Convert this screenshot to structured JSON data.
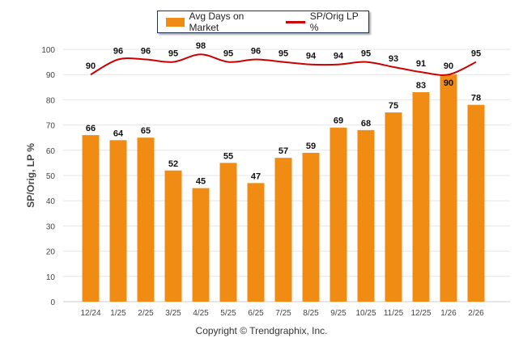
{
  "chart_data": {
    "type": "bar+line",
    "categories": [
      "12/24",
      "1/25",
      "2/25",
      "3/25",
      "4/25",
      "5/25",
      "6/25",
      "7/25",
      "8/25",
      "9/25",
      "10/25",
      "11/25",
      "12/25",
      "1/26",
      "2/26"
    ],
    "series": [
      {
        "name": "Avg Days on Market",
        "type": "bar",
        "color": "#f08c14",
        "values": [
          66,
          64,
          65,
          52,
          45,
          55,
          47,
          57,
          59,
          69,
          68,
          75,
          83,
          90,
          78
        ]
      },
      {
        "name": "SP/Orig LP %",
        "type": "line",
        "color": "#cc0000",
        "values": [
          90,
          96,
          96,
          95,
          98,
          95,
          96,
          95,
          94,
          94,
          95,
          93,
          91,
          90,
          95
        ]
      }
    ],
    "ylabel": "SP/Orig, LP %",
    "ylim": [
      0,
      100
    ],
    "yticks": [
      0,
      10,
      20,
      30,
      40,
      50,
      60,
      70,
      80,
      90,
      100
    ],
    "grid": true,
    "legend_placement": "top-center"
  },
  "footer": "Copyright © Trendgraphix, Inc."
}
